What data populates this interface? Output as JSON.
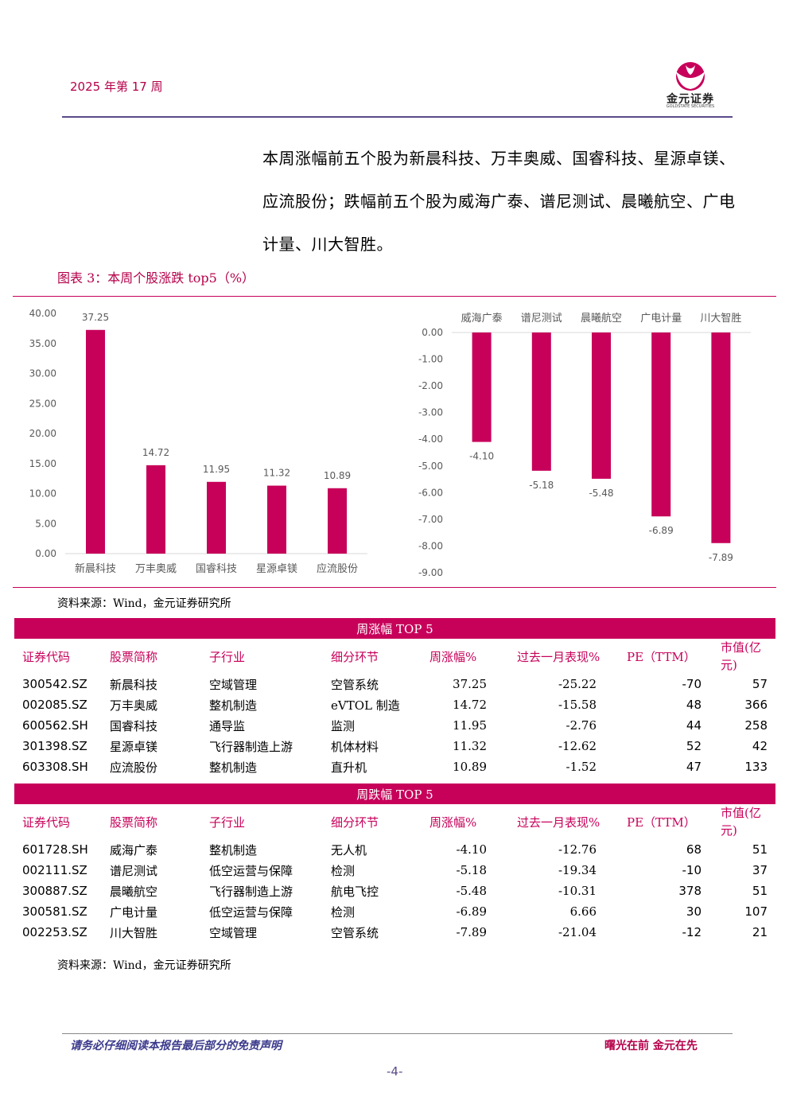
{
  "header": {
    "week": "2025 年第 17 周",
    "logo_text": "金元证券",
    "logo_sub": "GOLDSTATE SECURITIES"
  },
  "paragraph": "本周涨幅前五个股为新晨科技、万丰奥威、国睿科技、星源卓镁、应流股份；跌幅前五个股为威海广泰、谱尼测试、晨曦航空、广电计量、川大智胜。",
  "figure_title": "图表 3：本周个股涨跌 top5（%）",
  "source1": "资料来源：Wind，金元证券研究所",
  "source2": "资料来源：Wind，金元证券研究所",
  "chart_data": [
    {
      "type": "bar",
      "categories": [
        "新晨科技",
        "万丰奥威",
        "国睿科技",
        "星源卓镁",
        "应流股份"
      ],
      "values": [
        37.25,
        14.72,
        11.95,
        11.32,
        10.89
      ],
      "ylim": [
        0,
        40
      ],
      "yticks": [
        "40.00",
        "35.00",
        "30.00",
        "25.00",
        "20.00",
        "15.00",
        "10.00",
        "5.00",
        "0.00"
      ],
      "value_labels": [
        "37.25",
        "14.72",
        "11.95",
        "11.32",
        "10.89"
      ],
      "color": "#c7005a"
    },
    {
      "type": "bar",
      "categories": [
        "威海广泰",
        "谱尼测试",
        "晨曦航空",
        "广电计量",
        "川大智胜"
      ],
      "values": [
        -4.1,
        -5.18,
        -5.48,
        -6.89,
        -7.89
      ],
      "ylim": [
        -9,
        0
      ],
      "yticks": [
        "0.00",
        "-1.00",
        "-2.00",
        "-3.00",
        "-4.00",
        "-5.00",
        "-6.00",
        "-7.00",
        "-8.00",
        "-9.00"
      ],
      "value_labels": [
        "-4.10",
        "-5.18",
        "-5.48",
        "-6.89",
        "-7.89"
      ],
      "color": "#c7005a"
    }
  ],
  "table_up": {
    "title": "周涨幅 TOP 5",
    "headers": [
      "证券代码",
      "股票简称",
      "子行业",
      "细分环节",
      "周涨幅%",
      "过去一月表现%",
      "PE（TTM）",
      "市值(亿元)"
    ],
    "rows": [
      [
        "300542.SZ",
        "新晨科技",
        "空域管理",
        "空管系统",
        "37.25",
        "-25.22",
        "-70",
        "57"
      ],
      [
        "002085.SZ",
        "万丰奥威",
        "整机制造",
        "eVTOL 制造",
        "14.72",
        "-15.58",
        "48",
        "366"
      ],
      [
        "600562.SH",
        "国睿科技",
        "通导监",
        "监测",
        "11.95",
        "-2.76",
        "44",
        "258"
      ],
      [
        "301398.SZ",
        "星源卓镁",
        "飞行器制造上游",
        "机体材料",
        "11.32",
        "-12.62",
        "52",
        "42"
      ],
      [
        "603308.SH",
        "应流股份",
        "整机制造",
        "直升机",
        "10.89",
        "-1.52",
        "47",
        "133"
      ]
    ]
  },
  "table_down": {
    "title": "周跌幅 TOP 5",
    "headers": [
      "证券代码",
      "股票简称",
      "子行业",
      "细分环节",
      "周涨幅%",
      "过去一月表现%",
      "PE（TTM）",
      "市值(亿元)"
    ],
    "rows": [
      [
        "601728.SH",
        "威海广泰",
        "整机制造",
        "无人机",
        "-4.10",
        "-12.76",
        "68",
        "51"
      ],
      [
        "002111.SZ",
        "谱尼测试",
        "低空运营与保障",
        "检测",
        "-5.18",
        "-19.34",
        "-10",
        "37"
      ],
      [
        "300887.SZ",
        "晨曦航空",
        "飞行器制造上游",
        "航电飞控",
        "-5.48",
        "-10.31",
        "378",
        "51"
      ],
      [
        "300581.SZ",
        "广电计量",
        "低空运营与保障",
        "检测",
        "-6.89",
        "6.66",
        "30",
        "107"
      ],
      [
        "002253.SZ",
        "川大智胜",
        "空域管理",
        "空管系统",
        "-7.89",
        "-21.04",
        "-12",
        "21"
      ]
    ]
  },
  "footer": {
    "disclaimer": "请务必仔细阅读本报告最后部分的免责声明",
    "slogan": "曙光在前  金元在先",
    "page": "-4-"
  }
}
